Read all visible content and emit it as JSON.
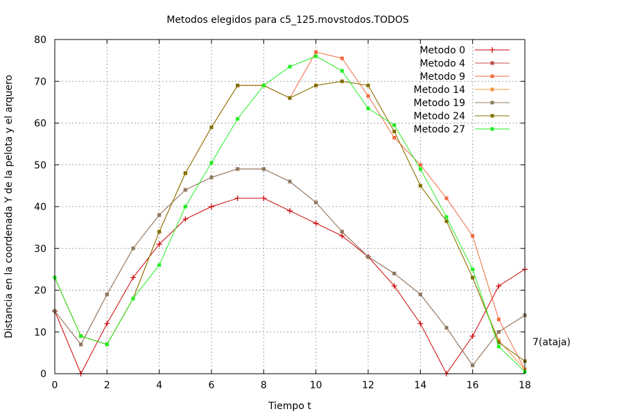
{
  "chart_data": {
    "type": "line",
    "title": "Metodos elegidos para c5_125.movstodos.TODOS",
    "xlabel": "Tiempo t",
    "ylabel": "Distancia en la coordenada Y de la pelota y el arquero",
    "xlim": [
      0,
      18
    ],
    "ylim": [
      0,
      80
    ],
    "xticks": [
      0,
      2,
      4,
      6,
      8,
      10,
      12,
      14,
      16,
      18
    ],
    "yticks": [
      0,
      10,
      20,
      30,
      40,
      50,
      60,
      70,
      80
    ],
    "grid": true,
    "legend_position": "top-right",
    "annotation": "7(ataja)",
    "x": [
      0,
      1,
      2,
      3,
      4,
      5,
      6,
      7,
      8,
      9,
      10,
      11,
      12,
      13,
      14,
      15,
      16,
      17,
      18
    ],
    "series": [
      {
        "name": "Metodo 0",
        "color": "#cc0000",
        "marker": "plus",
        "values": [
          15,
          0,
          12,
          23,
          31,
          37,
          40,
          42,
          42,
          39,
          36,
          33,
          28,
          21,
          12,
          0,
          9,
          21,
          25
        ]
      },
      {
        "name": "Metodo 4",
        "color": "#c04848",
        "marker": "square",
        "values": [
          15,
          7,
          19,
          30,
          38,
          44,
          47,
          49,
          49,
          46,
          41,
          34,
          28,
          24,
          19,
          11,
          2,
          10,
          14
        ]
      },
      {
        "name": "Metodo 9",
        "color": "#f06a3c",
        "marker": "square",
        "values": [
          23,
          9,
          7,
          18,
          34,
          48,
          59,
          69,
          69,
          66,
          77,
          75.5,
          66.5,
          56.5,
          50,
          42,
          33,
          13,
          1
        ]
      },
      {
        "name": "Metodo 14",
        "color": "#f0963c",
        "marker": "square",
        "values": [
          23,
          9,
          7,
          18,
          34,
          48,
          59,
          69,
          69,
          66,
          69,
          70,
          69,
          58,
          45,
          36.5,
          23,
          8,
          1
        ]
      },
      {
        "name": "Metodo 19",
        "color": "#8c7a60",
        "marker": "square",
        "values": [
          15,
          7,
          19,
          30,
          38,
          44,
          47,
          49,
          49,
          46,
          41,
          34,
          28,
          24,
          19,
          11,
          2,
          10,
          14
        ]
      },
      {
        "name": "Metodo 24",
        "color": "#807000",
        "marker": "square",
        "values": [
          23,
          9,
          7,
          18,
          34,
          48,
          59,
          69,
          69,
          66,
          69,
          70,
          69,
          58,
          45,
          36.5,
          23,
          7.5,
          3
        ]
      },
      {
        "name": "Metodo 27",
        "color": "#22ee22",
        "marker": "square",
        "values": [
          23,
          9,
          7,
          18,
          26,
          40,
          50.5,
          61,
          69,
          73.5,
          76,
          72.5,
          63.5,
          59.5,
          49,
          37.5,
          25,
          6.5,
          0.5
        ]
      }
    ],
    "series_0_override": [
      15,
      0,
      12,
      23,
      31,
      37,
      40,
      42,
      42,
      39,
      36,
      33,
      28,
      21,
      12,
      0,
      9,
      21,
      25
    ],
    "series_4_override": [
      15,
      7,
      19,
      30,
      38,
      44,
      47,
      49,
      49,
      46,
      41,
      34,
      28,
      24,
      19,
      11,
      2,
      10,
      14
    ]
  }
}
